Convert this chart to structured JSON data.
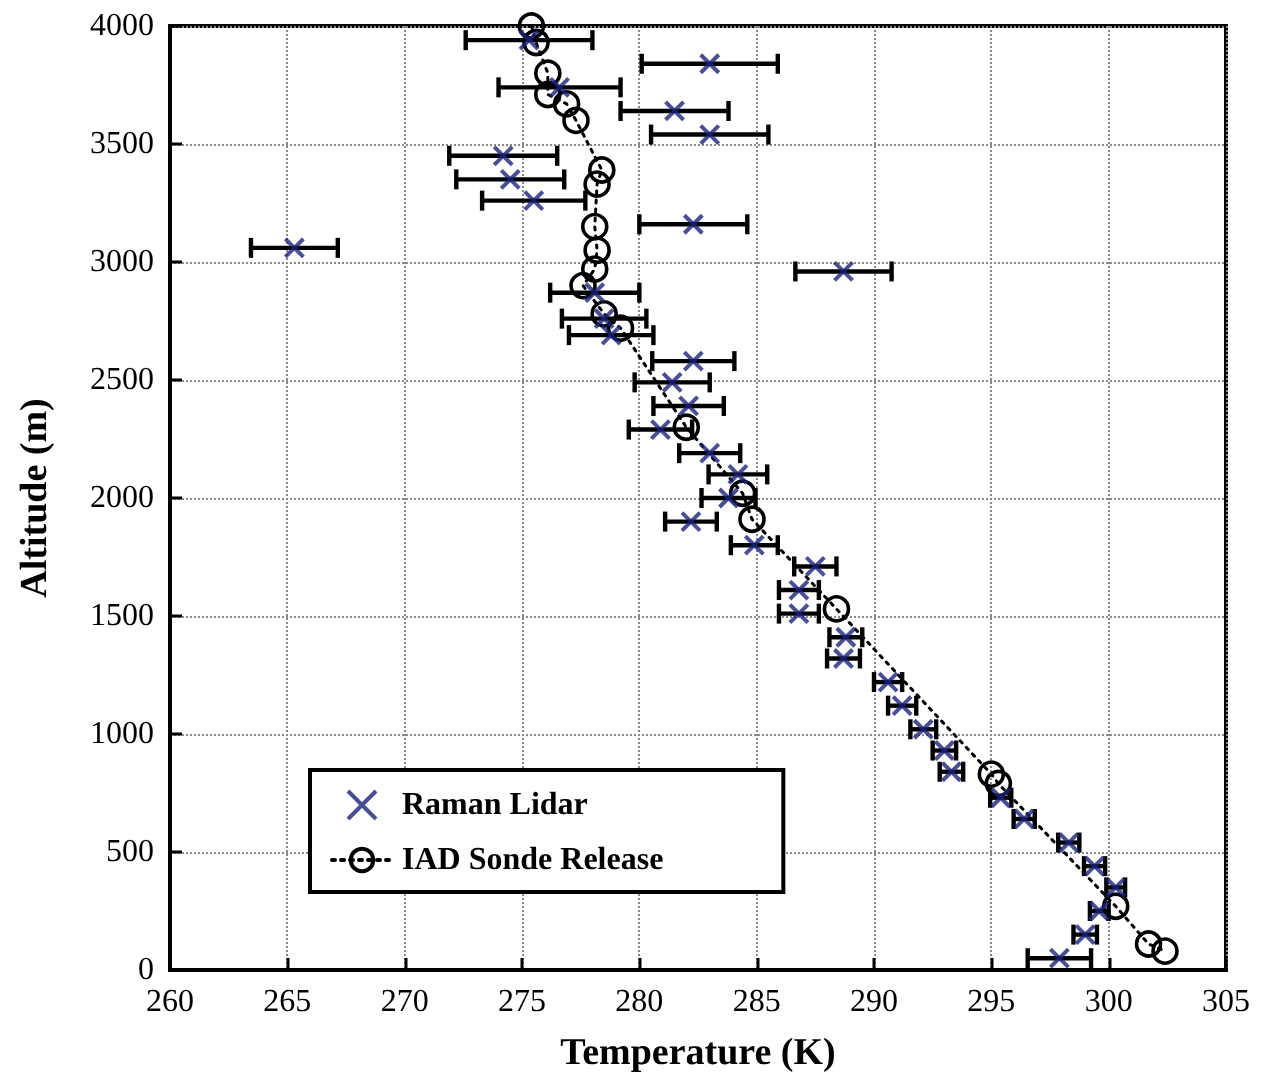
{
  "chart_data": {
    "type": "scatter",
    "xlabel": "Temperature (K)",
    "ylabel": "Altitude (m)",
    "xlim": [
      260,
      305
    ],
    "xticks": [
      260,
      265,
      270,
      275,
      280,
      285,
      290,
      295,
      300,
      305
    ],
    "ylim": [
      0,
      4000
    ],
    "yticks": [
      0,
      500,
      1000,
      1500,
      2000,
      2500,
      3000,
      3500,
      4000
    ],
    "grid": true,
    "legend": "bottom left",
    "series": [
      {
        "name": "Raman Lidar",
        "marker": "cross",
        "color": "#1a237e",
        "x": [
          283.0,
          275.3,
          276.6,
          281.5,
          283.0,
          274.2,
          274.5,
          275.5,
          265.3,
          282.3,
          288.7,
          278.1,
          278.5,
          278.8,
          282.3,
          281.4,
          282.1,
          280.9,
          283.0,
          284.2,
          283.8,
          282.2,
          284.9,
          287.5,
          286.8,
          286.8,
          288.8,
          288.7,
          290.6,
          291.2,
          292.1,
          293.0,
          293.3,
          295.4,
          296.4,
          298.3,
          299.4,
          300.3,
          299.6,
          299.0,
          297.9
        ],
        "values": [
          3840,
          3940,
          3740,
          3640,
          3540,
          3450,
          3350,
          3260,
          3060,
          3160,
          2960,
          2870,
          2760,
          2690,
          2580,
          2490,
          2390,
          2290,
          2190,
          2100,
          2000,
          1900,
          1800,
          1710,
          1610,
          1510,
          1410,
          1320,
          1220,
          1120,
          1020,
          930,
          840,
          730,
          640,
          540,
          440,
          350,
          250,
          150,
          50
        ],
        "xerrors": [
          2.9,
          2.7,
          2.6,
          2.3,
          2.5,
          2.3,
          2.3,
          2.2,
          1.85,
          2.3,
          2.05,
          1.9,
          1.8,
          1.8,
          1.75,
          1.6,
          1.5,
          1.35,
          1.3,
          1.25,
          1.15,
          1.1,
          1.0,
          0.9,
          0.85,
          0.85,
          0.7,
          0.7,
          0.6,
          0.6,
          0.55,
          0.5,
          0.5,
          0.45,
          0.45,
          0.45,
          0.45,
          0.4,
          0.4,
          0.5,
          1.35
        ]
      },
      {
        "name": "IAD Sonde Release",
        "type": "line",
        "marker": "circle",
        "line_style": "dotted",
        "color": "#000000",
        "x": [
          275.4,
          275.6,
          276.1,
          276.1,
          276.9,
          277.3,
          278.4,
          278.2,
          278.1,
          278.2,
          278.1,
          277.6,
          278.5,
          279.2,
          282.0,
          284.4,
          284.8,
          288.4,
          295.0,
          295.3,
          300.3,
          301.7,
          302.4
        ],
        "values": [
          4000,
          3930,
          3800,
          3710,
          3670,
          3600,
          3390,
          3330,
          3150,
          3050,
          2970,
          2900,
          2780,
          2720,
          2300,
          2020,
          1910,
          1530,
          830,
          790,
          270,
          110,
          80
        ]
      }
    ]
  }
}
